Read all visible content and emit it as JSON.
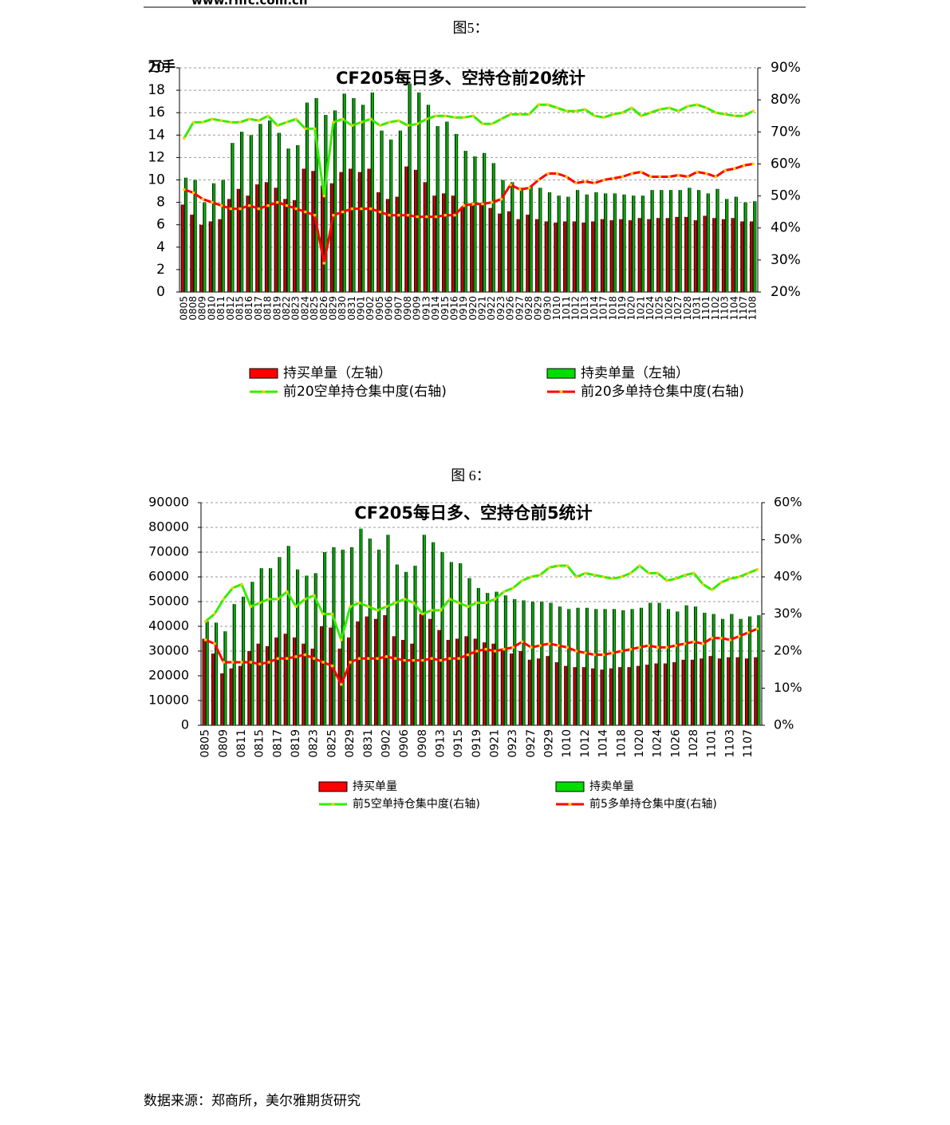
{
  "header": {
    "site": "www.rnfc.com.cn"
  },
  "captions": [
    "图5：",
    "图 6："
  ],
  "footer": "数据来源：郑商所，美尔雅期货研究",
  "chart_data": [
    {
      "type": "bar",
      "title": "CF205每日多、空持仓前20统计",
      "ylabel": "万手",
      "categories": [
        "0805",
        "0808",
        "0809",
        "0810",
        "0811",
        "0812",
        "0815",
        "0816",
        "0817",
        "0818",
        "0819",
        "0822",
        "0823",
        "0824",
        "0825",
        "0826",
        "0829",
        "0830",
        "0831",
        "0901",
        "0902",
        "0905",
        "0906",
        "0907",
        "0908",
        "0909",
        "0913",
        "0914",
        "0915",
        "0916",
        "0919",
        "0920",
        "0921",
        "0922",
        "0923",
        "0926",
        "0927",
        "0928",
        "0929",
        "0930",
        "1010",
        "1011",
        "1012",
        "1013",
        "1014",
        "1017",
        "1018",
        "1019",
        "1020",
        "1021",
        "1024",
        "1025",
        "1026",
        "1027",
        "1028",
        "1031",
        "1101",
        "1102",
        "1103",
        "1104",
        "1107",
        "1108"
      ],
      "ylim": [
        0,
        20
      ],
      "yticks": [
        0,
        2,
        4,
        6,
        8,
        10,
        12,
        14,
        16,
        18,
        20
      ],
      "y2lim": [
        20,
        90
      ],
      "y2ticks": [
        {
          "value": 20,
          "label": "20%"
        },
        {
          "value": 30,
          "label": "30%"
        },
        {
          "value": 40,
          "label": "40%"
        },
        {
          "value": 50,
          "label": "50%"
        },
        {
          "value": 60,
          "label": "60%"
        },
        {
          "value": 70,
          "label": "70%"
        },
        {
          "value": 80,
          "label": "80%"
        },
        {
          "value": 90,
          "label": "90%"
        }
      ],
      "grid": true,
      "marker_color": "#ffcc00",
      "series": [
        {
          "name": "持买单量（左轴）",
          "type": "bar",
          "color": "#ff0000",
          "values": [
            7.8,
            6.9,
            6.0,
            6.3,
            6.5,
            8.3,
            9.2,
            8.6,
            9.6,
            9.8,
            9.3,
            8.3,
            8.2,
            11.0,
            10.8,
            9.5,
            9.7,
            10.7,
            11.0,
            10.7,
            11.0,
            8.9,
            8.3,
            8.5,
            11.2,
            10.9,
            9.8,
            8.6,
            8.8,
            8.6,
            7.6,
            7.7,
            7.8,
            7.5,
            7.0,
            7.2,
            6.5,
            6.9,
            6.5,
            6.3,
            6.2,
            6.3,
            6.3,
            6.2,
            6.3,
            6.5,
            6.4,
            6.5,
            6.4,
            6.6,
            6.5,
            6.6,
            6.6,
            6.7,
            6.7,
            6.4,
            6.8,
            6.6,
            6.5,
            6.6,
            6.3,
            6.3
          ]
        },
        {
          "name": "持卖单量（左轴）",
          "type": "bar",
          "color": "#00dd00",
          "values": [
            10.2,
            10.0,
            8.0,
            9.7,
            10.0,
            13.3,
            14.3,
            14.0,
            15.0,
            15.3,
            14.2,
            12.8,
            13.1,
            16.9,
            17.3,
            15.8,
            16.2,
            17.7,
            17.3,
            16.7,
            17.8,
            14.4,
            13.6,
            14.4,
            18.6,
            17.8,
            16.7,
            14.8,
            15.2,
            14.1,
            12.6,
            12.1,
            12.4,
            11.5,
            10.0,
            9.8,
            9.3,
            9.4,
            9.3,
            8.9,
            8.6,
            8.5,
            9.1,
            8.7,
            8.9,
            8.8,
            8.8,
            8.7,
            8.6,
            8.6,
            9.1,
            9.1,
            9.1,
            9.1,
            9.3,
            9.1,
            8.8,
            9.2,
            8.3,
            8.5,
            8.0,
            8.1
          ]
        },
        {
          "name": "前20空单持仓集中度(右轴)",
          "type": "line",
          "axis": "y2",
          "color": "#33ee00",
          "values": [
            68,
            73,
            73,
            74,
            73.5,
            73,
            73,
            74,
            73.5,
            75,
            72,
            73,
            74,
            71,
            71,
            50,
            73,
            74,
            72,
            73,
            74,
            72,
            73,
            73.5,
            72,
            72.5,
            74,
            75,
            75,
            74.5,
            74.5,
            75,
            72.5,
            72.5,
            74,
            75.5,
            75.5,
            75.5,
            78.5,
            78.5,
            77.5,
            76.5,
            76.5,
            77,
            75,
            74.5,
            75.5,
            76,
            77.5,
            75,
            76,
            77,
            77.5,
            76.5,
            78,
            78.5,
            77.5,
            76,
            75.5,
            75,
            75,
            76.5
          ]
        },
        {
          "name": "前20多单持仓集中度(右轴)",
          "type": "line",
          "axis": "y2",
          "color": "#ff0000",
          "values": [
            52,
            51,
            49,
            48,
            47,
            46,
            46,
            47,
            46,
            47,
            48,
            47,
            46,
            45,
            44,
            29,
            44,
            45,
            46,
            46,
            46,
            45,
            44,
            44,
            44,
            43.5,
            43.5,
            43.5,
            44,
            44,
            47,
            47.5,
            47.5,
            48,
            49,
            53.5,
            52,
            52.5,
            55,
            57,
            57,
            56,
            54,
            54.5,
            54,
            55,
            55.5,
            56,
            57,
            57.5,
            56,
            56,
            56,
            56.5,
            56,
            57.5,
            57,
            56,
            58,
            58.5,
            59.5,
            60
          ]
        }
      ]
    },
    {
      "type": "bar",
      "title": "CF205每日多、空持仓前5统计",
      "categories": [
        "0805",
        null,
        "0809",
        null,
        "0811",
        null,
        "0815",
        null,
        "0817",
        null,
        "0819",
        null,
        "0823",
        null,
        "0825",
        null,
        "0829",
        null,
        "0831",
        null,
        "0902",
        null,
        "0906",
        null,
        "0908",
        null,
        "0913",
        null,
        "0915",
        null,
        "0919",
        null,
        "0921",
        null,
        "0923",
        null,
        "0927",
        null,
        "0929",
        null,
        "1010",
        null,
        "1012",
        null,
        "1014",
        null,
        "1018",
        null,
        "1020",
        null,
        "1024",
        null,
        "1026",
        null,
        "1028",
        null,
        "1101",
        null,
        "1103",
        null,
        "1107",
        null
      ],
      "ylim": [
        0,
        90000
      ],
      "yticks": [
        0,
        10000,
        20000,
        30000,
        40000,
        50000,
        60000,
        70000,
        80000,
        90000
      ],
      "y2lim": [
        0,
        60
      ],
      "y2ticks": [
        {
          "value": 0,
          "label": "0%"
        },
        {
          "value": 10,
          "label": "10%"
        },
        {
          "value": 20,
          "label": "20%"
        },
        {
          "value": 30,
          "label": "30%"
        },
        {
          "value": 40,
          "label": "40%"
        },
        {
          "value": 50,
          "label": "50%"
        },
        {
          "value": 60,
          "label": "60%"
        }
      ],
      "grid": true,
      "marker_color": "#ffcc00",
      "series": [
        {
          "name": "持买单量",
          "type": "bar",
          "color": "#ff0000",
          "values": [
            35000,
            29000,
            21000,
            23000,
            24000,
            30000,
            33000,
            32000,
            35500,
            37000,
            35500,
            33000,
            31000,
            40000,
            39500,
            31000,
            35500,
            42000,
            44000,
            43000,
            44500,
            36000,
            34500,
            33000,
            45000,
            43000,
            38500,
            34500,
            35000,
            36000,
            35000,
            33500,
            33000,
            31000,
            29000,
            30000,
            26500,
            27000,
            28000,
            25500,
            24000,
            23500,
            23500,
            23000,
            22500,
            23000,
            23500,
            23500,
            24000,
            24500,
            25000,
            25000,
            25500,
            26500,
            26500,
            27000,
            28000,
            27000,
            27500,
            27500,
            27000,
            27500
          ]
        },
        {
          "name": "持卖单量",
          "type": "bar",
          "color": "#00dd00",
          "values": [
            42000,
            41500,
            38000,
            49000,
            52000,
            58000,
            63500,
            63500,
            68000,
            72500,
            63000,
            60500,
            61500,
            70000,
            72000,
            71000,
            72000,
            79500,
            75500,
            71000,
            77000,
            65000,
            62000,
            64500,
            77000,
            74000,
            70000,
            66000,
            65500,
            59500,
            55500,
            53500,
            54000,
            52500,
            51000,
            50500,
            50000,
            50000,
            49500,
            48000,
            47000,
            47500,
            47500,
            47000,
            47000,
            47000,
            46500,
            47000,
            47500,
            49500,
            49500,
            47000,
            46000,
            48500,
            48000,
            45500,
            45000,
            43000,
            45000,
            43000,
            44000,
            44500
          ]
        },
        {
          "name": "前5空单持仓集中度(右轴)",
          "type": "line",
          "axis": "y2",
          "color": "#33ee00",
          "values": [
            28,
            30,
            34,
            37,
            38,
            32,
            33,
            34,
            34,
            36,
            32,
            34,
            35,
            30,
            30,
            23,
            32,
            33,
            32,
            31,
            32,
            33,
            34,
            33,
            30,
            31,
            31,
            34,
            33,
            32,
            33,
            33,
            34,
            36,
            37,
            39,
            40,
            40.5,
            42.5,
            43,
            43,
            40,
            41,
            40.5,
            40,
            39.5,
            40,
            41,
            43,
            41,
            41,
            39,
            39.5,
            40.5,
            41,
            38,
            36.5,
            38.5,
            39.5,
            40,
            41,
            42
          ]
        },
        {
          "name": "前5多单持仓集中度(右轴)",
          "type": "line",
          "axis": "y2",
          "color": "#ff0000",
          "values": [
            23,
            22,
            17,
            17,
            17,
            17,
            16.5,
            17,
            18,
            18,
            18.5,
            19,
            18,
            17,
            16,
            11,
            17,
            18,
            18,
            18,
            18.5,
            18,
            17.5,
            17.5,
            17.5,
            18,
            17.5,
            18,
            18,
            19,
            20,
            20.5,
            20,
            20.5,
            21,
            22.5,
            21,
            21.5,
            22,
            21.5,
            21,
            20,
            19.5,
            19,
            19,
            19.5,
            20,
            20.5,
            21,
            21.5,
            21,
            21,
            21.5,
            22,
            22.5,
            22,
            23.5,
            23.5,
            23,
            24,
            25,
            26
          ]
        }
      ]
    }
  ]
}
